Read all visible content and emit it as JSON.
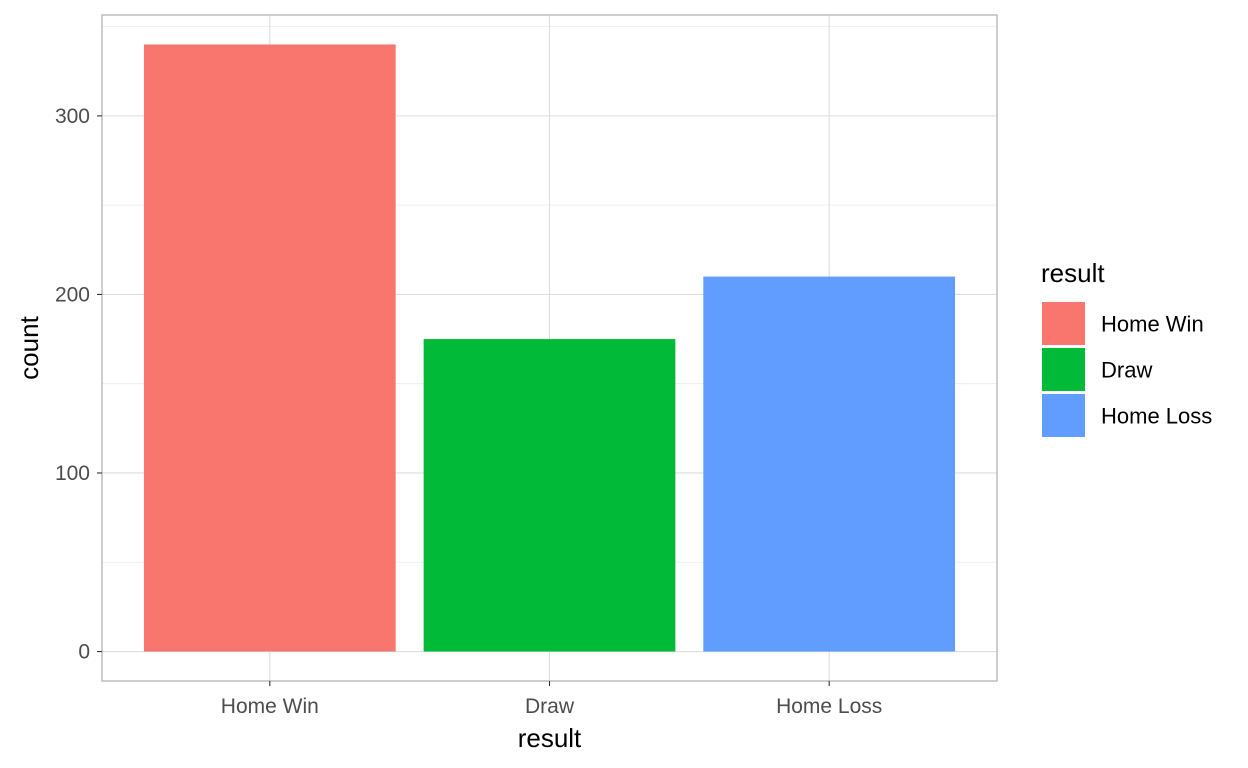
{
  "chart_data": {
    "type": "bar",
    "title": "",
    "xlabel": "result",
    "ylabel": "count",
    "categories": [
      "Home Win",
      "Draw",
      "Home Loss"
    ],
    "values": [
      340,
      175,
      210
    ],
    "colors": [
      "#F8766D",
      "#00BA38",
      "#619CFF"
    ],
    "ylim": [
      -16.5,
      356.5
    ],
    "yticks": [
      0,
      100,
      200,
      300
    ],
    "grid": true,
    "legend": {
      "title": "result",
      "position": "right",
      "entries": [
        " Home Win",
        "Draw",
        "Home Loss"
      ]
    }
  }
}
